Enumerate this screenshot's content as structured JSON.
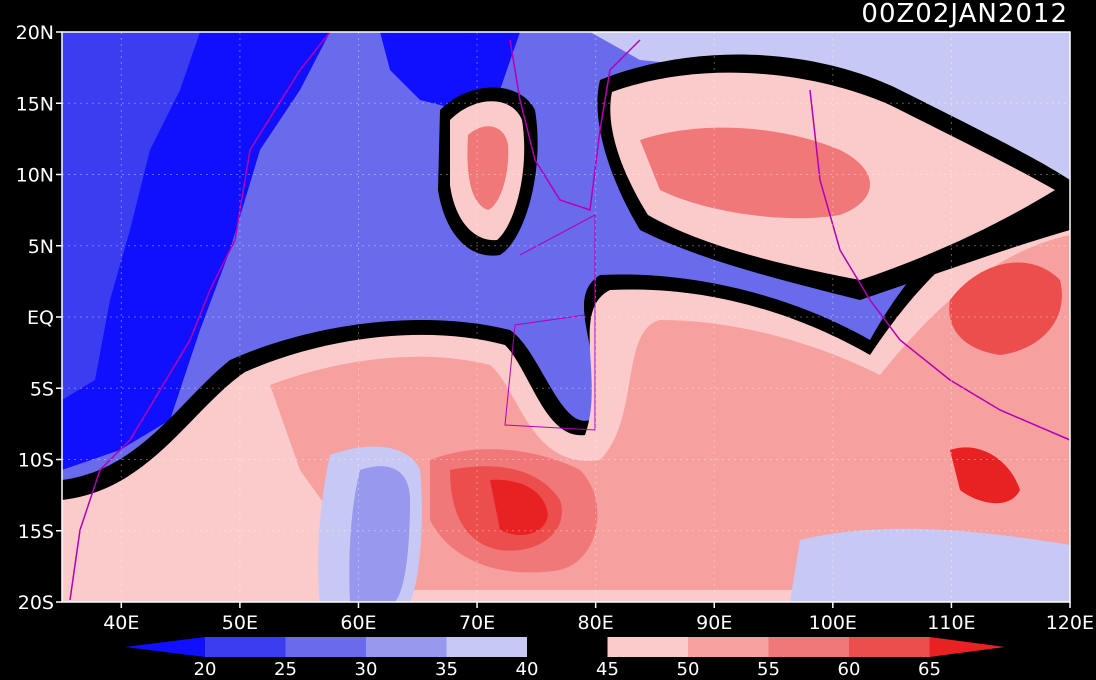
{
  "title": "00Z02JAN2012",
  "map": {
    "lat_labels": [
      "20N",
      "15N",
      "10N",
      "5N",
      "EQ",
      "5S",
      "10S",
      "15S",
      "20S"
    ],
    "lat_values": [
      20,
      15,
      10,
      5,
      0,
      -5,
      -10,
      -15,
      -20
    ],
    "lon_labels": [
      "40E",
      "50E",
      "60E",
      "70E",
      "80E",
      "90E",
      "100E",
      "110E",
      "120E"
    ],
    "lon_values": [
      40,
      50,
      60,
      70,
      80,
      90,
      100,
      110,
      120
    ],
    "lon_range": [
      35,
      120
    ],
    "lat_range": [
      -20,
      20
    ]
  },
  "colorbar": {
    "labels": [
      "20",
      "25",
      "30",
      "35",
      "40",
      "45",
      "50",
      "55",
      "60",
      "65"
    ],
    "colors": [
      "#1010ff",
      "#3c3cf0",
      "#6a6aec",
      "#9898ee",
      "#c8c8f4",
      "#000000",
      "#fbcaca",
      "#f6a0a0",
      "#f07878",
      "#ec4e4e",
      "#e82222"
    ]
  },
  "colors": {
    "background": "#000000",
    "coastline": "#b400b4",
    "frame": "#ffffff"
  }
}
